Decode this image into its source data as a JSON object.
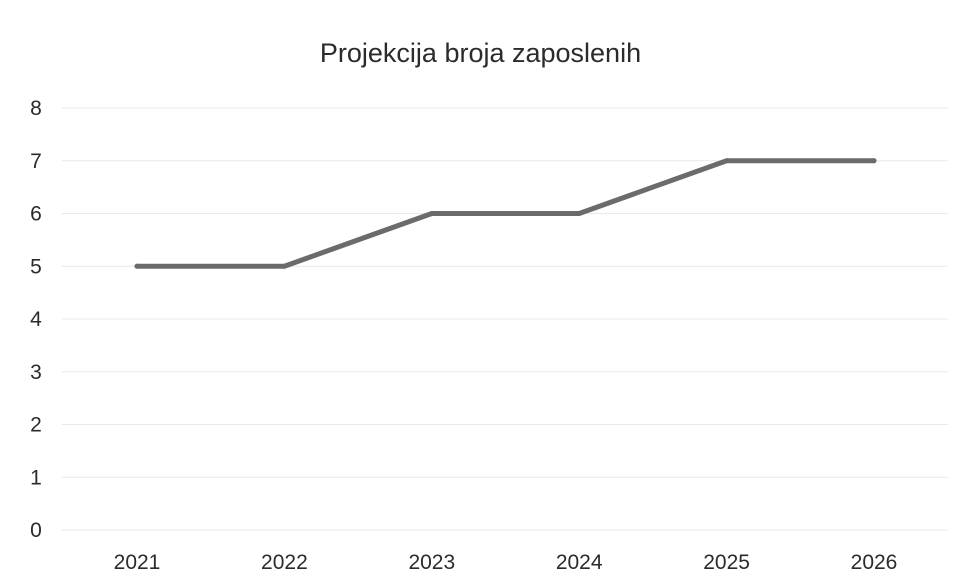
{
  "chart_data": {
    "type": "line",
    "title": "Projekcija broja zaposlenih",
    "xlabel": "",
    "ylabel": "",
    "categories": [
      "2021",
      "2022",
      "2023",
      "2024",
      "2025",
      "2026"
    ],
    "series": [
      {
        "values": [
          5,
          5,
          6,
          6,
          7,
          7
        ],
        "color": "#6b6b6b"
      }
    ],
    "ylim": [
      0,
      8
    ],
    "yticks": [
      "0",
      "1",
      "2",
      "3",
      "4",
      "5",
      "6",
      "7",
      "8"
    ],
    "grid": true,
    "legend": "none"
  }
}
